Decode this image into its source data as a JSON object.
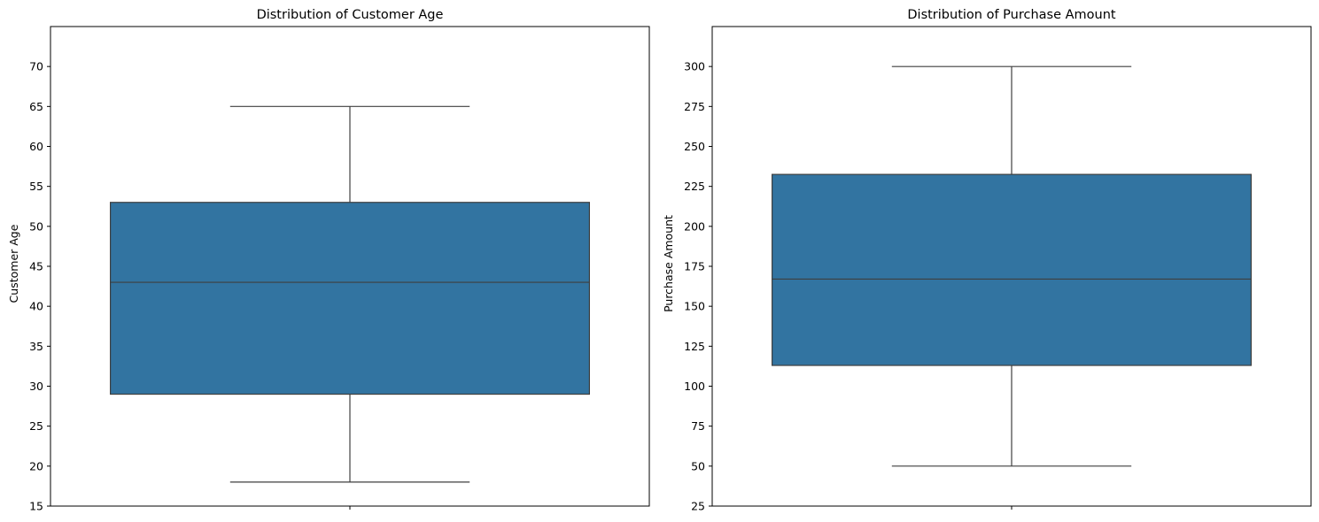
{
  "chart_data": [
    {
      "type": "box",
      "title": "Distribution of Customer Age",
      "xlabel": "",
      "ylabel": "Customer Age",
      "ylim": [
        15,
        75
      ],
      "yticks": [
        15,
        20,
        25,
        30,
        35,
        40,
        45,
        50,
        55,
        60,
        65,
        70
      ],
      "box": {
        "whisker_low": 18,
        "q1": 29,
        "median": 43,
        "q3": 53,
        "whisker_high": 65
      },
      "color": "#3274a1",
      "line_color": "#3f3f3f"
    },
    {
      "type": "box",
      "title": "Distribution of Purchase Amount",
      "xlabel": "",
      "ylabel": "Purchase Amount",
      "ylim": [
        25,
        325
      ],
      "yticks": [
        25,
        50,
        75,
        100,
        125,
        150,
        175,
        200,
        225,
        250,
        275,
        300
      ],
      "box": {
        "whisker_low": 50,
        "q1": 113,
        "median": 167,
        "q3": 232.5,
        "whisker_high": 300
      },
      "color": "#3274a1",
      "line_color": "#3f3f3f"
    }
  ]
}
